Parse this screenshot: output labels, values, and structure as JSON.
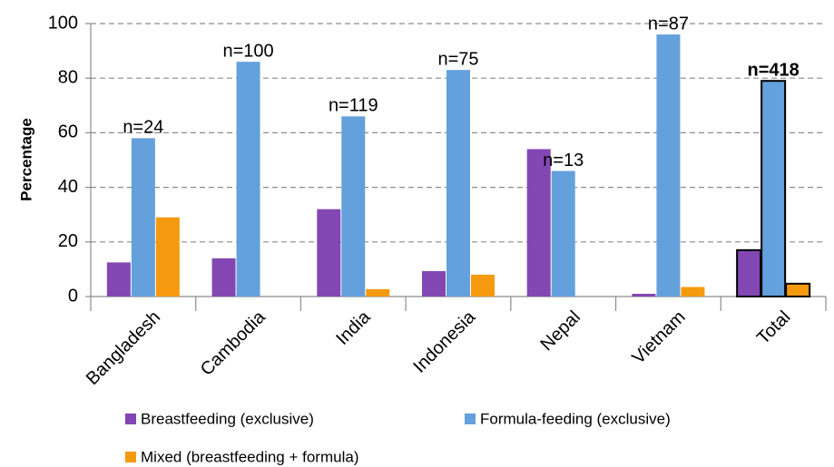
{
  "chart_data": {
    "type": "bar",
    "y_label": "Percentage",
    "categories": [
      "Bangladesh",
      "Cambodia",
      "India",
      "Indonesia",
      "Nepal",
      "Vietnam",
      "Total"
    ],
    "series": [
      {
        "name": "Breastfeeding (exclusive)",
        "color": "#8347b3",
        "values": [
          12.5,
          14,
          32,
          9.3,
          54,
          1,
          17
        ]
      },
      {
        "name": "Formula-feeding (exclusive)",
        "color": "#64a0dc",
        "values": [
          58,
          86,
          66,
          83,
          46,
          96,
          79
        ]
      },
      {
        "name": "Mixed (breastfeeding + formula)",
        "color": "#f59a0f",
        "values": [
          29,
          0,
          2.7,
          8,
          0,
          3.5,
          4.7
        ]
      }
    ],
    "annotations": [
      "n=24",
      "n=100",
      "n=119",
      "n=75",
      "n=13",
      "n=87",
      "n=418"
    ],
    "ylim": [
      0,
      100
    ],
    "yticks": [
      0,
      20,
      40,
      60,
      80,
      100
    ],
    "grid": true,
    "legend": "bottom"
  }
}
